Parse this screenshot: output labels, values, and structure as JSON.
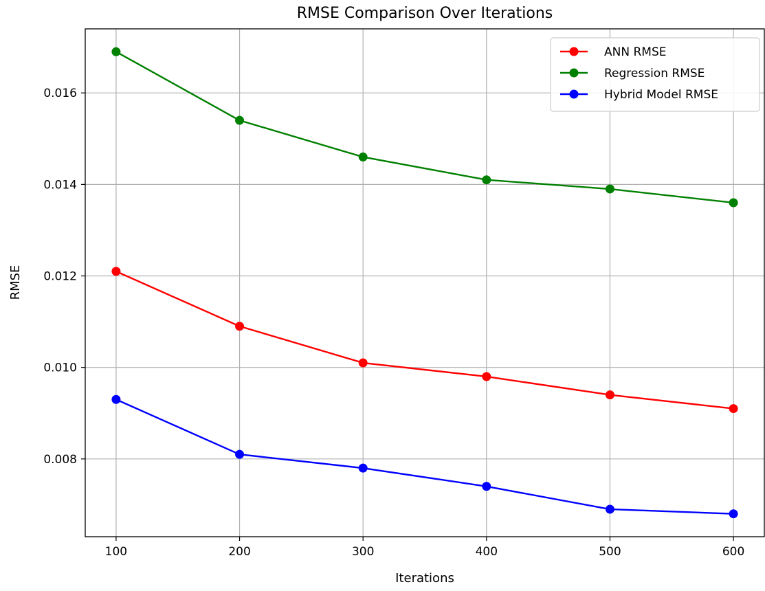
{
  "chart_data": {
    "type": "line",
    "title": "RMSE Comparison Over Iterations",
    "xlabel": "Iterations",
    "ylabel": "RMSE",
    "x": [
      100,
      200,
      300,
      400,
      500,
      600
    ],
    "xlim": [
      75,
      625
    ],
    "ylim": [
      0.0063,
      0.0174
    ],
    "xticks": [
      100,
      200,
      300,
      400,
      500,
      600
    ],
    "xtick_labels": [
      "100",
      "200",
      "300",
      "400",
      "500",
      "600"
    ],
    "yticks": [
      0.008,
      0.01,
      0.012,
      0.014,
      0.016
    ],
    "ytick_labels": [
      "0.008",
      "0.010",
      "0.012",
      "0.014",
      "0.016"
    ],
    "grid": true,
    "legend_position": "top-right",
    "series": [
      {
        "name": "ANN RMSE",
        "color": "#ff0000",
        "marker": "circle",
        "values": [
          0.0121,
          0.0109,
          0.0101,
          0.0098,
          0.0094,
          0.0091
        ]
      },
      {
        "name": "Regression RMSE",
        "color": "#008000",
        "marker": "circle",
        "values": [
          0.0169,
          0.0154,
          0.0146,
          0.0141,
          0.0139,
          0.0136
        ]
      },
      {
        "name": "Hybrid Model RMSE",
        "color": "#0000ff",
        "marker": "circle",
        "values": [
          0.0093,
          0.0081,
          0.0078,
          0.0074,
          0.0069,
          0.0068
        ]
      }
    ]
  }
}
